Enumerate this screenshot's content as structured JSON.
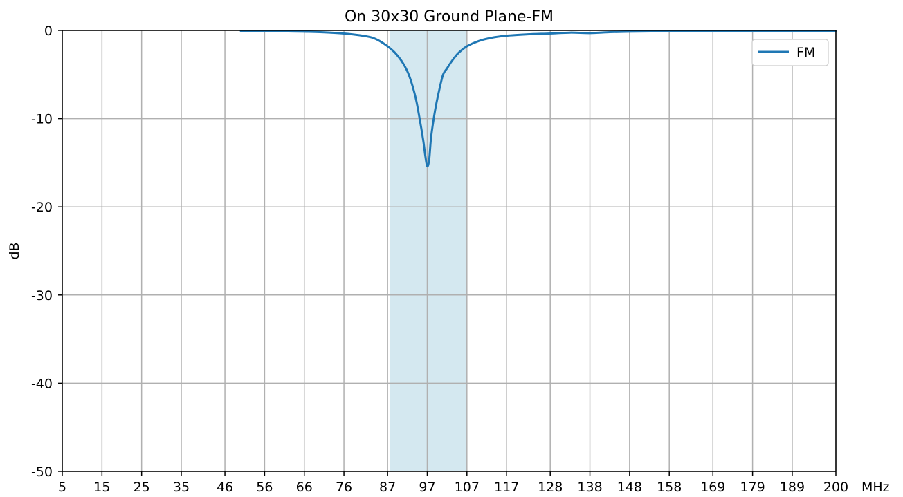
{
  "chart_data": {
    "type": "line",
    "title": "On 30x30 Ground Plane-FM",
    "xlabel": "MHz",
    "ylabel": "dB",
    "xlim": [
      5,
      200
    ],
    "ylim": [
      -50,
      0
    ],
    "grid": true,
    "legend_position": "top-right",
    "x_ticks": [
      5,
      15,
      25,
      35,
      46,
      56,
      66,
      76,
      87,
      97,
      107,
      117,
      128,
      138,
      148,
      158,
      169,
      179,
      189,
      200
    ],
    "x_tick_labels": [
      "5",
      "15",
      "25",
      "35",
      "46",
      "56",
      "66",
      "76",
      "87",
      "97",
      "107",
      "117",
      "128",
      "138",
      "148",
      "158",
      "169",
      "179",
      "189",
      "200"
    ],
    "y_ticks": [
      0,
      -10,
      -20,
      -30,
      -40,
      -50
    ],
    "y_tick_labels": [
      "0",
      "-10",
      "-20",
      "-30",
      "-40",
      "-50"
    ],
    "highlight_band": {
      "x_start": 87.5,
      "x_end": 107,
      "color": "#d4e8f0"
    },
    "series": [
      {
        "name": "FM",
        "color": "#1f77b4",
        "x": [
          50,
          56,
          60,
          66,
          70,
          76,
          80,
          83,
          85,
          87,
          89,
          91,
          92.5,
          94,
          95,
          96,
          96.5,
          97,
          97.5,
          98,
          99,
          100,
          101,
          102,
          103,
          104,
          105,
          107,
          110,
          113,
          117,
          122,
          128,
          133,
          138,
          143,
          148,
          158,
          169,
          179,
          189,
          200
        ],
        "y": [
          -0.05,
          -0.08,
          -0.1,
          -0.15,
          -0.2,
          -0.35,
          -0.55,
          -0.8,
          -1.2,
          -1.8,
          -2.6,
          -3.8,
          -5.2,
          -7.5,
          -9.8,
          -12.5,
          -14.2,
          -15.4,
          -14.6,
          -12.0,
          -9.0,
          -6.8,
          -5.0,
          -4.3,
          -3.6,
          -3.0,
          -2.5,
          -1.8,
          -1.2,
          -0.85,
          -0.6,
          -0.45,
          -0.35,
          -0.25,
          -0.3,
          -0.2,
          -0.15,
          -0.1,
          -0.08,
          -0.05,
          -0.05,
          -0.05
        ]
      }
    ]
  }
}
